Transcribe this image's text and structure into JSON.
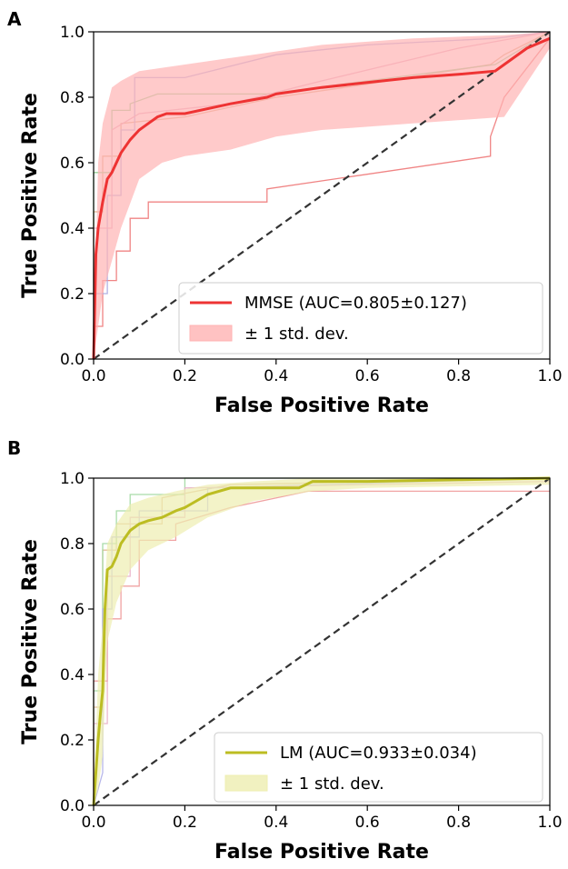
{
  "chart_data": [
    {
      "type": "line",
      "panel": "A",
      "xlabel": "False Positive Rate",
      "ylabel": "True Positive Rate",
      "xlim": [
        0,
        1
      ],
      "ylim": [
        0,
        1
      ],
      "xticks": [
        "0.0",
        "0.2",
        "0.4",
        "0.6",
        "0.8",
        "1.0"
      ],
      "yticks": [
        "0.0",
        "0.2",
        "0.4",
        "0.6",
        "0.8",
        "1.0"
      ],
      "grid": false,
      "legend_position": "lower-right",
      "mean_color": "#ee3333",
      "band_color": "#ffb3b3",
      "mean_series": {
        "name": "MMSE (AUC=0.805±0.127)",
        "x": [
          0,
          0.005,
          0.01,
          0.02,
          0.03,
          0.04,
          0.06,
          0.08,
          0.1,
          0.12,
          0.14,
          0.16,
          0.2,
          0.3,
          0.38,
          0.4,
          0.5,
          0.6,
          0.7,
          0.8,
          0.88,
          0.9,
          0.95,
          1.0
        ],
        "y": [
          0,
          0.32,
          0.4,
          0.48,
          0.55,
          0.57,
          0.63,
          0.67,
          0.7,
          0.72,
          0.74,
          0.75,
          0.75,
          0.78,
          0.8,
          0.81,
          0.83,
          0.845,
          0.86,
          0.87,
          0.88,
          0.9,
          0.95,
          0.98
        ]
      },
      "band": {
        "name": "± 1 std. dev.",
        "x": [
          0,
          0.01,
          0.02,
          0.04,
          0.06,
          0.1,
          0.15,
          0.2,
          0.3,
          0.4,
          0.5,
          0.7,
          0.9,
          1.0
        ],
        "upper": [
          0,
          0.6,
          0.72,
          0.83,
          0.85,
          0.88,
          0.89,
          0.9,
          0.92,
          0.94,
          0.96,
          0.98,
          0.99,
          1.0
        ],
        "lower": [
          0,
          0.1,
          0.2,
          0.3,
          0.4,
          0.55,
          0.6,
          0.62,
          0.64,
          0.68,
          0.7,
          0.72,
          0.74,
          0.95
        ]
      },
      "folds": [
        {
          "color": "#ee7777",
          "x": [
            0,
            0,
            0.02,
            0.02,
            0.05,
            0.05,
            0.08,
            0.08,
            0.12,
            0.12,
            0.38,
            0.38,
            0.87,
            0.87,
            0.9,
            1.0
          ],
          "y": [
            0,
            0.1,
            0.1,
            0.24,
            0.24,
            0.33,
            0.33,
            0.43,
            0.43,
            0.48,
            0.48,
            0.52,
            0.62,
            0.68,
            0.8,
            0.98
          ]
        },
        {
          "color": "#e0a880",
          "x": [
            0,
            0,
            0.02,
            0.02,
            0.06,
            0.06,
            0.2,
            0.4,
            0.6,
            0.87,
            0.9,
            1.0
          ],
          "y": [
            0,
            0.45,
            0.45,
            0.62,
            0.62,
            0.72,
            0.74,
            0.8,
            0.84,
            0.9,
            0.93,
            1.0
          ]
        },
        {
          "color": "#8fcf8f",
          "x": [
            0,
            0,
            0.04,
            0.04,
            0.08,
            0.08,
            0.14,
            0.38,
            0.6,
            0.88,
            1.0
          ],
          "y": [
            0,
            0.57,
            0.57,
            0.76,
            0.76,
            0.78,
            0.81,
            0.81,
            0.85,
            0.9,
            1.0
          ]
        },
        {
          "color": "#a9a9e0",
          "x": [
            0,
            0,
            0.03,
            0.03,
            0.06,
            0.06,
            0.09,
            0.09,
            0.2,
            0.4,
            0.6,
            0.88,
            1.0
          ],
          "y": [
            0,
            0.2,
            0.2,
            0.5,
            0.5,
            0.7,
            0.7,
            0.86,
            0.86,
            0.93,
            0.96,
            0.98,
            1.0
          ]
        },
        {
          "color": "#e8a8c0",
          "x": [
            0,
            0,
            0.04,
            0.04,
            0.1,
            0.3,
            0.5,
            0.8,
            1.0
          ],
          "y": [
            0,
            0.4,
            0.4,
            0.7,
            0.75,
            0.78,
            0.85,
            0.95,
            1.0
          ]
        }
      ],
      "chance_line": {
        "x": [
          0,
          1
        ],
        "y": [
          0,
          1
        ],
        "color": "#333333"
      },
      "legend": [
        "MMSE (AUC=0.805±0.127)",
        "± 1 std. dev."
      ]
    },
    {
      "type": "line",
      "panel": "B",
      "xlabel": "False Positive Rate",
      "ylabel": "True Positive Rate",
      "xlim": [
        0,
        1
      ],
      "ylim": [
        0,
        1
      ],
      "xticks": [
        "0.0",
        "0.2",
        "0.4",
        "0.6",
        "0.8",
        "1.0"
      ],
      "yticks": [
        "0.0",
        "0.2",
        "0.4",
        "0.6",
        "0.8",
        "1.0"
      ],
      "grid": false,
      "legend_position": "lower-right",
      "mean_color": "#bcbd22",
      "band_color": "#eeeeb0",
      "mean_series": {
        "name": "LM (AUC=0.933±0.034)",
        "x": [
          0,
          0.01,
          0.015,
          0.02,
          0.025,
          0.03,
          0.04,
          0.05,
          0.06,
          0.08,
          0.1,
          0.12,
          0.15,
          0.18,
          0.2,
          0.25,
          0.3,
          0.45,
          0.48,
          0.6,
          0.8,
          1.0
        ],
        "y": [
          0,
          0.2,
          0.28,
          0.35,
          0.6,
          0.72,
          0.73,
          0.76,
          0.8,
          0.84,
          0.86,
          0.87,
          0.88,
          0.9,
          0.91,
          0.95,
          0.97,
          0.97,
          0.99,
          0.99,
          0.995,
          1.0
        ]
      },
      "band": {
        "name": "± 1 std. dev.",
        "x": [
          0,
          0.01,
          0.02,
          0.03,
          0.05,
          0.08,
          0.12,
          0.18,
          0.25,
          0.35,
          0.48,
          0.6,
          0.8,
          1.0
        ],
        "upper": [
          0,
          0.4,
          0.55,
          0.8,
          0.86,
          0.92,
          0.94,
          0.96,
          0.98,
          0.99,
          1.0,
          1.0,
          1.0,
          1.0
        ],
        "lower": [
          0,
          0.05,
          0.15,
          0.5,
          0.62,
          0.72,
          0.78,
          0.82,
          0.88,
          0.93,
          0.96,
          0.97,
          0.975,
          0.98
        ]
      },
      "folds": [
        {
          "color": "#ee9999",
          "x": [
            0,
            0,
            0.03,
            0.03,
            0.06,
            0.06,
            0.1,
            0.1,
            0.18,
            0.18,
            0.3,
            0.47,
            0.48,
            1.0
          ],
          "y": [
            0,
            0.38,
            0.38,
            0.57,
            0.57,
            0.67,
            0.67,
            0.81,
            0.81,
            0.86,
            0.91,
            0.96,
            0.96,
            0.96
          ]
        },
        {
          "color": "#e0b890",
          "x": [
            0,
            0,
            0.02,
            0.02,
            0.05,
            0.05,
            0.15,
            0.15,
            0.3,
            1.0
          ],
          "y": [
            0,
            0.3,
            0.3,
            0.78,
            0.78,
            0.86,
            0.86,
            0.94,
            0.98,
            1.0
          ]
        },
        {
          "color": "#a0d8a0",
          "x": [
            0,
            0,
            0.02,
            0.02,
            0.05,
            0.05,
            0.08,
            0.08,
            0.2,
            0.2,
            1.0
          ],
          "y": [
            0,
            0.35,
            0.35,
            0.8,
            0.8,
            0.9,
            0.9,
            0.95,
            0.95,
            1.0,
            1.0
          ]
        },
        {
          "color": "#b0b0e8",
          "x": [
            0,
            0.02,
            0.02,
            0.04,
            0.04,
            0.1,
            0.1,
            0.25,
            0.25,
            1.0
          ],
          "y": [
            0,
            0.1,
            0.6,
            0.6,
            0.82,
            0.82,
            0.9,
            0.9,
            0.97,
            1.0
          ]
        },
        {
          "color": "#e8b0c8",
          "x": [
            0,
            0,
            0.03,
            0.03,
            0.08,
            0.08,
            0.2,
            0.2,
            1.0
          ],
          "y": [
            0,
            0.25,
            0.25,
            0.7,
            0.7,
            0.88,
            0.88,
            0.97,
            0.99
          ]
        }
      ],
      "chance_line": {
        "x": [
          0,
          1
        ],
        "y": [
          0,
          1
        ],
        "color": "#333333"
      },
      "legend": [
        "LM (AUC=0.933±0.034)",
        "± 1 std. dev."
      ]
    }
  ]
}
